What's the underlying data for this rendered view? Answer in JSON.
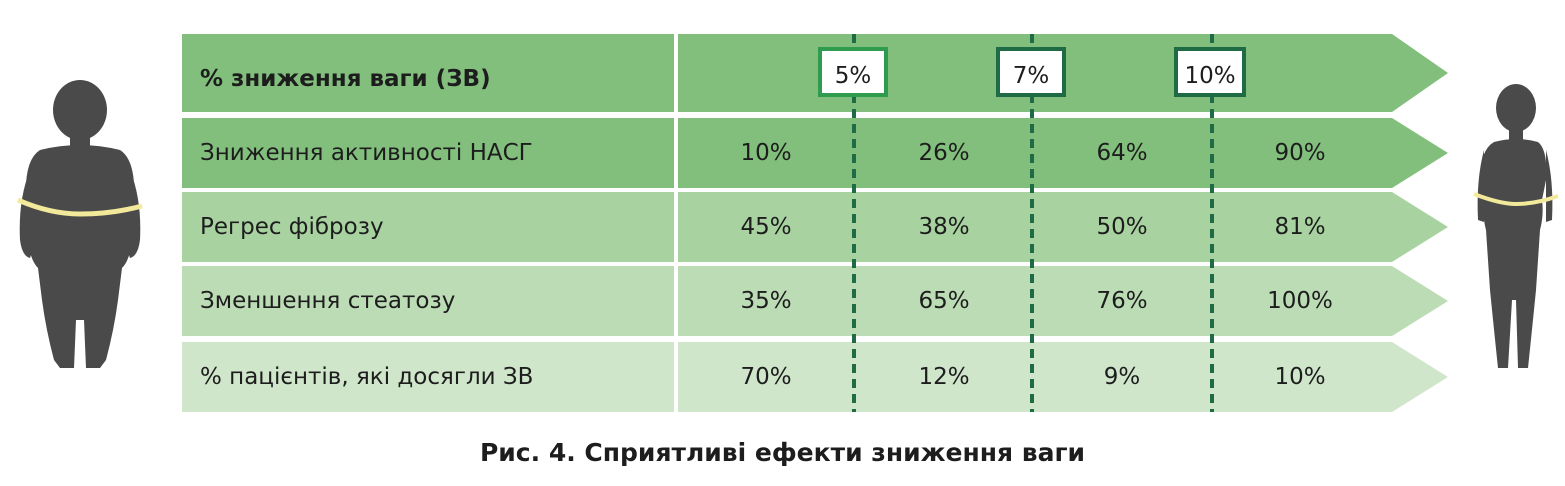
{
  "table": {
    "header_label": "% зниження ваги (ЗВ)",
    "thresholds": [
      "5%",
      "7%",
      "10%"
    ],
    "rows": [
      {
        "label": "Зниження активності НАСГ",
        "values": [
          "10%",
          "26%",
          "64%",
          "90%"
        ]
      },
      {
        "label": "Регрес фіброзу",
        "values": [
          "45%",
          "38%",
          "50%",
          "81%"
        ]
      },
      {
        "label": "Зменшення стеатозу",
        "values": [
          "35%",
          "65%",
          "76%",
          "100%"
        ]
      },
      {
        "label": "% пацієнтів, які досягли ЗВ",
        "values": [
          "70%",
          "12%",
          "9%",
          "10%"
        ]
      }
    ]
  },
  "caption": "Рис. 4. Сприятливі ефекти зниження ваги",
  "colors": {
    "header_bg": "#82bf7d",
    "row1_bg": "#82bf7d",
    "row2_bg": "#a8d3a1",
    "row3_bg": "#bcdcb5",
    "row4_bg": "#cfe6cb",
    "divider": "#1f6b46",
    "silhouette": "#4a4a4a",
    "tape": "#f2ea9a"
  },
  "icons": [
    "obese-woman-silhouette-icon",
    "slim-woman-silhouette-icon"
  ]
}
